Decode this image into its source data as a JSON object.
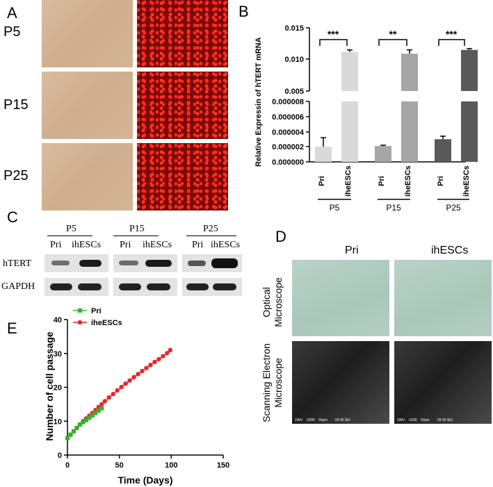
{
  "panel_a": {
    "letter": "A",
    "rows": [
      "P5",
      "P15",
      "P25"
    ]
  },
  "panel_b": {
    "letter": "B",
    "ylabel": "Relative Expressin of hTERT mRNA",
    "upper_ticks": [
      "0.015",
      "0.010",
      "0.005"
    ],
    "lower_ticks": [
      "0.000008",
      "0.000006",
      "0.000004",
      "0.000002",
      "0.000000"
    ],
    "groups": [
      {
        "passage": "P5",
        "sig": "***"
      },
      {
        "passage": "P15",
        "sig": "**"
      },
      {
        "passage": "P25",
        "sig": "***"
      }
    ],
    "xlabels": [
      "Pri",
      "iheESCs"
    ],
    "colors": {
      "pri_p5": "#d9d9d9",
      "ihe_p5": "#d9d9d9",
      "pri_p15": "#a6a6a6",
      "ihe_p15": "#a6a6a6",
      "pri_p25": "#595959",
      "ihe_p25": "#595959"
    }
  },
  "chart_data": [
    {
      "type": "bar",
      "categories": [
        "P5 Pri",
        "P5 iheESCs",
        "P15 Pri",
        "P15 iheESCs",
        "P25 Pri",
        "P25 iheESCs"
      ],
      "values": [
        2e-06,
        0.0112,
        2.1e-06,
        0.0109,
        3e-06,
        0.0115
      ],
      "errors": [
        1.2e-06,
        0.0003,
        1e-07,
        0.0006,
        4e-07,
        0.0002
      ],
      "ylabel": "Relative Expressin of hTERT mRNA",
      "broken_axis": true,
      "lower_ylim": [
        0,
        8e-06
      ],
      "upper_ylim": [
        0.005,
        0.015
      ]
    },
    {
      "type": "line",
      "xlabel": "Time (Days)",
      "ylabel": "Number of cell passage",
      "xlim": [
        0,
        150
      ],
      "ylim": [
        0,
        40
      ],
      "xticks": [
        0,
        50,
        100,
        150
      ],
      "yticks": [
        0,
        10,
        20,
        30,
        40
      ],
      "series": [
        {
          "name": "Pri",
          "color": "#2db52d",
          "marker": "square",
          "x": [
            0,
            3,
            6,
            9,
            12,
            15,
            18,
            21,
            24,
            27,
            30,
            33
          ],
          "y": [
            5,
            6,
            7,
            8,
            9,
            9.7,
            10.3,
            11,
            11.7,
            12.4,
            13.1,
            13.8
          ]
        },
        {
          "name": "iheESCs",
          "color": "#e8262a",
          "marker": "circle",
          "x": [
            0,
            3,
            6,
            9,
            12,
            15,
            18,
            21,
            24,
            27,
            30,
            33,
            36,
            40,
            44,
            48,
            52,
            56,
            60,
            64,
            68,
            72,
            76,
            80,
            84,
            88,
            92,
            96,
            99
          ],
          "y": [
            5,
            6,
            7,
            8,
            9,
            10,
            10.8,
            11.6,
            12.4,
            13.3,
            14.2,
            15,
            15.9,
            17,
            18,
            19.1,
            20.1,
            21.1,
            22,
            23,
            23.9,
            24.8,
            25.7,
            26.6,
            27.5,
            28.3,
            29.2,
            30.1,
            31
          ]
        }
      ]
    }
  ],
  "panel_c": {
    "letter": "C",
    "passages": [
      "P5",
      "P15",
      "P25"
    ],
    "lanes": [
      "Pri",
      "ihESCs"
    ],
    "rows": [
      "hTERT",
      "GAPDH"
    ]
  },
  "panel_d": {
    "letter": "D",
    "cols": [
      "Pri",
      "ihESCs"
    ],
    "rows": [
      "Optical\nMicroscope",
      "Scanning Electron\nMicroscope"
    ],
    "sem_captions": [
      "10kV    X300    50μm        09 30 SEI",
      "10kV    X330    50μm        09 30 SEI"
    ]
  },
  "panel_e": {
    "letter": "E"
  }
}
